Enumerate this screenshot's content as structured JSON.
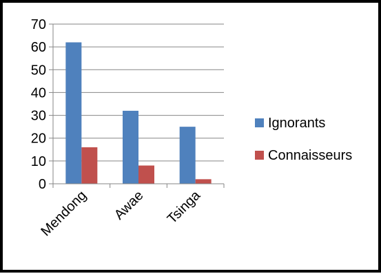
{
  "chart_data": {
    "type": "bar",
    "title": "",
    "xlabel": "",
    "ylabel": "",
    "categories": [
      "Mendong",
      "Awae",
      "Tsinga"
    ],
    "series": [
      {
        "name": "Ignorants",
        "values": [
          62,
          32,
          25
        ],
        "color": "#4F81BD"
      },
      {
        "name": "Connaisseurs",
        "values": [
          16,
          8,
          2
        ],
        "color": "#C0504D"
      }
    ],
    "ylim": [
      0,
      70
    ],
    "yticks": [
      "0",
      "10",
      "20",
      "30",
      "40",
      "50",
      "60",
      "70"
    ],
    "grid": true,
    "legend": "right",
    "frame_color": "#000000",
    "grid_color": "#868686"
  }
}
